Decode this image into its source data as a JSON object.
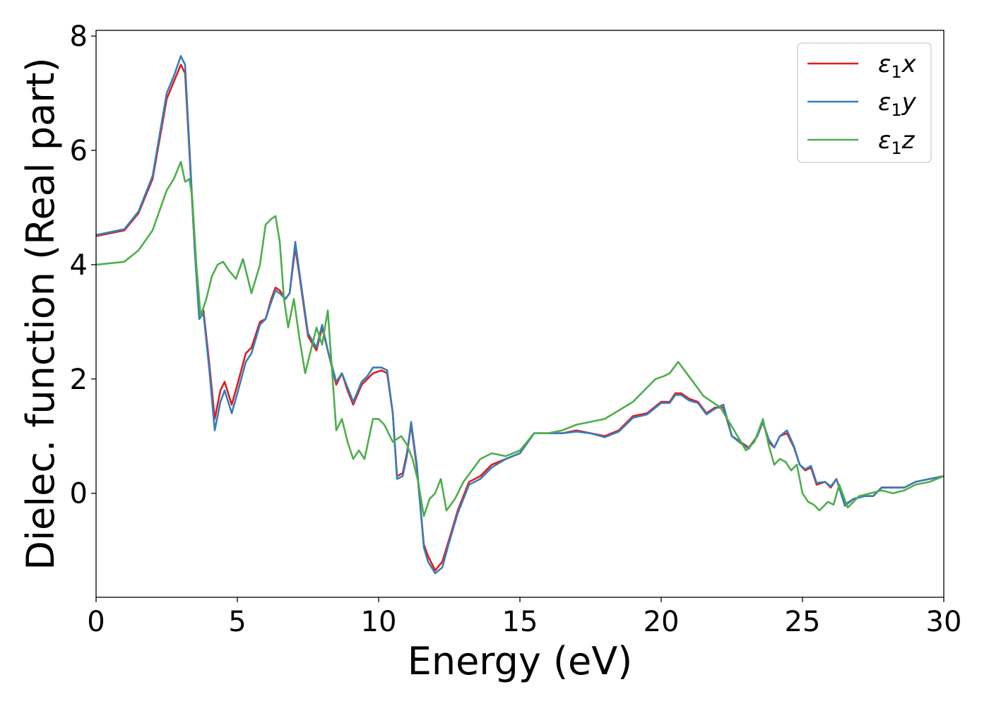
{
  "chart_data": {
    "type": "line",
    "title": "",
    "xlabel": "Energy (eV)",
    "ylabel": "Dielec. function (Real part)",
    "xlim": [
      0,
      30
    ],
    "ylim": [
      -1.82,
      8.1
    ],
    "xticks": [
      0,
      5,
      10,
      15,
      20,
      25,
      30
    ],
    "yticks": [
      0,
      2,
      4,
      6,
      8
    ],
    "grid": false,
    "legend_position": "top-right",
    "series": [
      {
        "name": "ε₁x",
        "legend_base": "ε",
        "legend_sub": "1",
        "legend_suffix": "x",
        "color": "#e41a1c",
        "x": [
          0,
          1,
          1.5,
          2,
          2.5,
          2.75,
          3.0,
          3.15,
          3.3,
          3.5,
          3.65,
          3.8,
          4.0,
          4.2,
          4.4,
          4.55,
          4.8,
          5.0,
          5.3,
          5.5,
          5.8,
          6.0,
          6.2,
          6.35,
          6.5,
          6.7,
          6.85,
          7.05,
          7.2,
          7.5,
          7.8,
          8.0,
          8.2,
          8.5,
          8.7,
          8.9,
          9.1,
          9.4,
          9.6,
          9.8,
          10.1,
          10.3,
          10.5,
          10.65,
          10.85,
          11.0,
          11.15,
          11.35,
          11.6,
          11.75,
          12.0,
          12.25,
          12.5,
          12.8,
          13.2,
          13.6,
          14.0,
          14.5,
          15.0,
          15.5,
          16.0,
          16.5,
          17.0,
          17.5,
          18.0,
          18.5,
          19.0,
          19.5,
          20.0,
          20.3,
          20.5,
          20.7,
          21.0,
          21.3,
          21.6,
          21.9,
          22.2,
          22.5,
          22.8,
          23.1,
          23.4,
          23.6,
          23.8,
          24.0,
          24.2,
          24.45,
          24.7,
          24.9,
          25.1,
          25.3,
          25.5,
          25.8,
          26.0,
          26.2,
          26.5,
          26.8,
          27.2,
          27.5,
          27.8,
          28.2,
          28.6,
          29.0,
          29.5,
          30.0
        ],
        "y": [
          4.5,
          4.6,
          4.9,
          5.5,
          6.9,
          7.2,
          7.5,
          7.35,
          6.0,
          4.2,
          3.1,
          3.2,
          2.3,
          1.3,
          1.8,
          1.95,
          1.55,
          1.9,
          2.45,
          2.55,
          3.0,
          3.05,
          3.4,
          3.6,
          3.55,
          3.4,
          3.5,
          4.3,
          3.8,
          2.75,
          2.5,
          2.9,
          2.5,
          1.9,
          2.1,
          1.8,
          1.55,
          1.9,
          2.0,
          2.1,
          2.15,
          2.1,
          1.4,
          0.3,
          0.35,
          0.7,
          1.2,
          0.45,
          -0.9,
          -1.1,
          -1.35,
          -1.2,
          -0.8,
          -0.3,
          0.2,
          0.3,
          0.5,
          0.6,
          0.7,
          1.05,
          1.05,
          1.05,
          1.1,
          1.05,
          1.0,
          1.1,
          1.35,
          1.4,
          1.6,
          1.6,
          1.75,
          1.75,
          1.65,
          1.6,
          1.4,
          1.5,
          1.5,
          1.0,
          0.9,
          0.8,
          1.0,
          1.25,
          0.9,
          0.8,
          1.0,
          1.05,
          0.8,
          0.5,
          0.4,
          0.45,
          0.15,
          0.2,
          0.1,
          0.25,
          -0.2,
          -0.1,
          -0.05,
          -0.05,
          0.1,
          0.1,
          0.1,
          0.2,
          0.25,
          0.3
        ]
      },
      {
        "name": "ε₁y",
        "legend_base": "ε",
        "legend_sub": "1",
        "legend_suffix": "y",
        "color": "#377eb8",
        "x": [
          0,
          1,
          1.5,
          2,
          2.5,
          2.75,
          3.0,
          3.15,
          3.3,
          3.5,
          3.65,
          3.8,
          4.0,
          4.2,
          4.4,
          4.55,
          4.8,
          5.0,
          5.3,
          5.5,
          5.8,
          6.0,
          6.2,
          6.35,
          6.5,
          6.7,
          6.85,
          7.05,
          7.2,
          7.5,
          7.8,
          8.0,
          8.2,
          8.5,
          8.7,
          8.9,
          9.1,
          9.4,
          9.6,
          9.8,
          10.1,
          10.3,
          10.5,
          10.65,
          10.85,
          11.0,
          11.15,
          11.35,
          11.6,
          11.75,
          12.0,
          12.25,
          12.5,
          12.8,
          13.2,
          13.6,
          14.0,
          14.5,
          15.0,
          15.5,
          16.0,
          16.5,
          17.0,
          17.5,
          18.0,
          18.5,
          19.0,
          19.5,
          20.0,
          20.3,
          20.5,
          20.7,
          21.0,
          21.3,
          21.6,
          21.9,
          22.2,
          22.5,
          22.8,
          23.1,
          23.4,
          23.6,
          23.8,
          24.0,
          24.2,
          24.45,
          24.7,
          24.9,
          25.1,
          25.3,
          25.5,
          25.8,
          26.0,
          26.2,
          26.5,
          26.8,
          27.2,
          27.5,
          27.8,
          28.2,
          28.6,
          29.0,
          29.5,
          30.0
        ],
        "y": [
          4.52,
          4.62,
          4.93,
          5.55,
          7.0,
          7.3,
          7.65,
          7.5,
          6.1,
          4.2,
          3.05,
          3.15,
          2.2,
          1.1,
          1.6,
          1.8,
          1.4,
          1.75,
          2.3,
          2.45,
          2.95,
          3.05,
          3.35,
          3.55,
          3.5,
          3.4,
          3.5,
          4.4,
          3.85,
          2.8,
          2.55,
          2.95,
          2.5,
          1.95,
          2.1,
          1.85,
          1.6,
          1.95,
          2.05,
          2.2,
          2.2,
          2.15,
          1.4,
          0.25,
          0.3,
          0.65,
          1.25,
          0.5,
          -0.95,
          -1.2,
          -1.4,
          -1.3,
          -0.85,
          -0.35,
          0.15,
          0.25,
          0.45,
          0.6,
          0.7,
          1.05,
          1.05,
          1.05,
          1.08,
          1.05,
          0.98,
          1.08,
          1.32,
          1.38,
          1.58,
          1.58,
          1.72,
          1.72,
          1.62,
          1.58,
          1.38,
          1.48,
          1.55,
          1.0,
          0.88,
          0.78,
          1.0,
          1.25,
          0.95,
          0.8,
          1.0,
          1.1,
          0.82,
          0.5,
          0.42,
          0.48,
          0.18,
          0.2,
          0.12,
          0.25,
          -0.22,
          -0.1,
          -0.05,
          -0.05,
          0.1,
          0.1,
          0.1,
          0.2,
          0.25,
          0.3
        ]
      },
      {
        "name": "ε₁z",
        "legend_base": "ε",
        "legend_sub": "1",
        "legend_suffix": "z",
        "color": "#4daf4a",
        "x": [
          0,
          1,
          1.5,
          2,
          2.5,
          2.75,
          3.0,
          3.15,
          3.3,
          3.4,
          3.55,
          3.7,
          3.9,
          4.1,
          4.3,
          4.5,
          4.7,
          4.95,
          5.2,
          5.5,
          5.8,
          6.0,
          6.2,
          6.35,
          6.5,
          6.65,
          6.8,
          7.0,
          7.2,
          7.4,
          7.6,
          7.8,
          8.0,
          8.2,
          8.5,
          8.7,
          8.9,
          9.1,
          9.3,
          9.5,
          9.8,
          10.0,
          10.2,
          10.5,
          10.8,
          11.0,
          11.2,
          11.4,
          11.6,
          11.8,
          12.0,
          12.2,
          12.4,
          12.7,
          13.0,
          13.3,
          13.6,
          14.0,
          14.5,
          15.0,
          15.5,
          16.0,
          16.5,
          17.0,
          17.5,
          18.0,
          18.5,
          19.0,
          19.5,
          19.8,
          20.1,
          20.3,
          20.6,
          20.9,
          21.2,
          21.5,
          21.8,
          22.1,
          22.4,
          22.7,
          23.0,
          23.3,
          23.6,
          23.8,
          24.0,
          24.2,
          24.4,
          24.6,
          24.8,
          25.0,
          25.2,
          25.4,
          25.6,
          25.9,
          26.1,
          26.3,
          26.6,
          27.0,
          27.4,
          27.8,
          28.2,
          28.6,
          29.0,
          29.5,
          30.0
        ],
        "y": [
          4.0,
          4.05,
          4.25,
          4.6,
          5.3,
          5.5,
          5.8,
          5.45,
          5.5,
          5.2,
          4.0,
          3.1,
          3.4,
          3.8,
          4.0,
          4.05,
          3.9,
          3.75,
          4.1,
          3.5,
          4.0,
          4.7,
          4.8,
          4.85,
          4.4,
          3.4,
          2.9,
          3.4,
          2.7,
          2.1,
          2.5,
          2.9,
          2.6,
          3.2,
          1.1,
          1.3,
          0.9,
          0.6,
          0.75,
          0.6,
          1.3,
          1.3,
          1.2,
          0.9,
          1.0,
          0.85,
          0.6,
          0.2,
          -0.4,
          -0.1,
          0.0,
          0.25,
          -0.3,
          -0.1,
          0.2,
          0.4,
          0.6,
          0.7,
          0.65,
          0.75,
          1.05,
          1.05,
          1.1,
          1.2,
          1.25,
          1.3,
          1.45,
          1.6,
          1.85,
          2.0,
          2.05,
          2.1,
          2.3,
          2.1,
          1.9,
          1.7,
          1.6,
          1.5,
          1.25,
          1.0,
          0.75,
          0.9,
          1.3,
          0.85,
          0.5,
          0.6,
          0.55,
          0.4,
          0.5,
          0.0,
          -0.15,
          -0.2,
          -0.3,
          -0.15,
          -0.2,
          0.15,
          -0.25,
          -0.05,
          0.0,
          0.05,
          0.0,
          0.05,
          0.15,
          0.2,
          0.3
        ]
      }
    ]
  }
}
